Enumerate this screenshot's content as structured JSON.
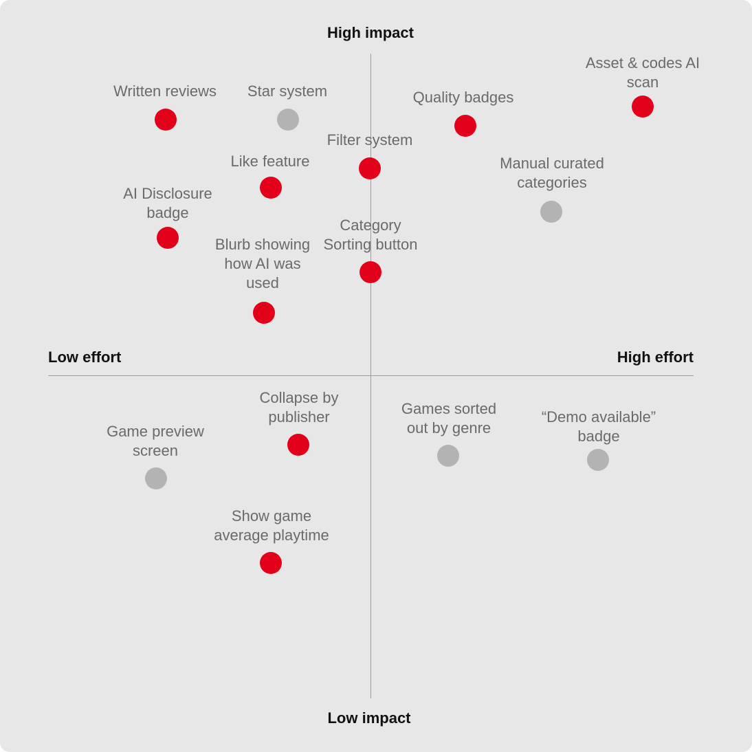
{
  "axes": {
    "top": "High impact",
    "bottom": "Low impact",
    "left": "Low effort",
    "right": "High effort"
  },
  "colors": {
    "highlighted": "#e3001b",
    "neutral": "#b3b3b3"
  },
  "items": [
    {
      "label": "Written reviews",
      "highlighted": true
    },
    {
      "label": "Star system",
      "highlighted": false
    },
    {
      "label": "Quality badges",
      "highlighted": true
    },
    {
      "label": "Asset & codes AI scan",
      "highlighted": true
    },
    {
      "label": "Filter system",
      "highlighted": true
    },
    {
      "label": "Like feature",
      "highlighted": true
    },
    {
      "label": "Manual curated categories",
      "highlighted": false
    },
    {
      "label": "AI Disclosure badge",
      "highlighted": true
    },
    {
      "label": "Category Sorting button",
      "highlighted": true
    },
    {
      "label": "Blurb showing how AI was used",
      "highlighted": true
    },
    {
      "label": "Collapse by publisher",
      "highlighted": true
    },
    {
      "label": "Games sorted out by genre",
      "highlighted": false
    },
    {
      "label": "“Demo available” badge",
      "highlighted": false
    },
    {
      "label": "Game preview screen",
      "highlighted": false
    },
    {
      "label": "Show game average playtime",
      "highlighted": true
    }
  ]
}
